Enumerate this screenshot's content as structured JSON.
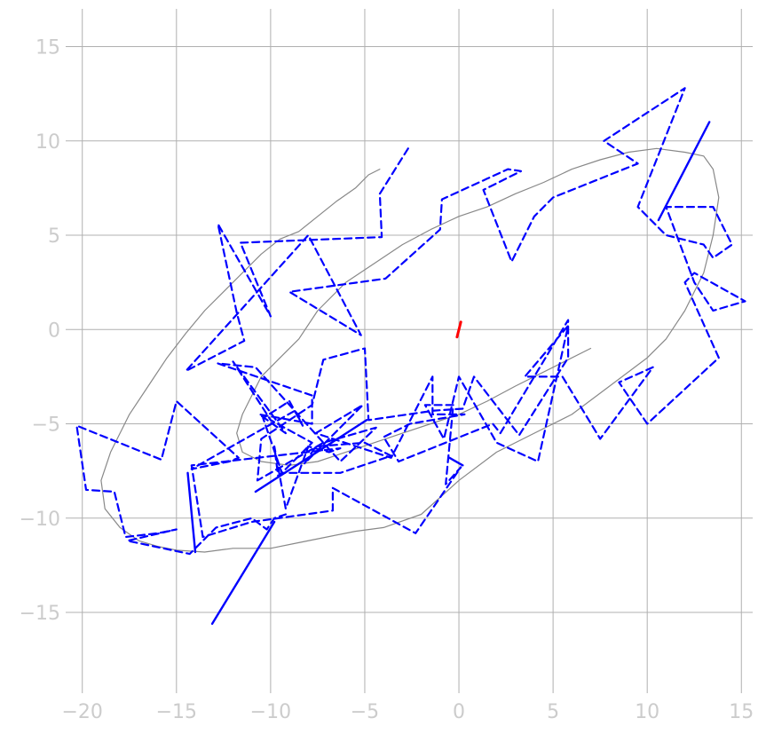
{
  "chart_data": {
    "type": "line",
    "title": "",
    "xlabel": "",
    "ylabel": "",
    "xlim": [
      -20.6,
      15.6
    ],
    "ylim": [
      -19.0,
      17.0
    ],
    "x_ticks": [
      -20,
      -15,
      -10,
      -5,
      0,
      5,
      10,
      15
    ],
    "x_tick_labels": [
      "−20",
      "−15",
      "−10",
      "−5",
      "0",
      "5",
      "10",
      "15"
    ],
    "y_ticks": [
      -15,
      -10,
      -5,
      0,
      5,
      10,
      15
    ],
    "y_tick_labels": [
      "−15",
      "−10",
      "−5",
      "0",
      "5",
      "10",
      "15"
    ],
    "grid": true,
    "series": [
      {
        "style": "solid-thin",
        "color": "#888888",
        "points": [
          [
            -4.2,
            8.5
          ],
          [
            -4.8,
            8.2
          ],
          [
            -5.5,
            7.5
          ],
          [
            -6.5,
            6.8
          ],
          [
            -7.5,
            6.0
          ],
          [
            -8.5,
            5.2
          ],
          [
            -9.5,
            4.8
          ],
          [
            -10.5,
            4.0
          ],
          [
            -11.5,
            3.0
          ],
          [
            -12.5,
            2.0
          ],
          [
            -13.5,
            1.0
          ],
          [
            -14.5,
            -0.2
          ],
          [
            -15.5,
            -1.5
          ],
          [
            -16.5,
            -3.0
          ],
          [
            -17.5,
            -4.5
          ],
          [
            -18.5,
            -6.5
          ],
          [
            -19.0,
            -8.0
          ],
          [
            -18.8,
            -9.5
          ],
          [
            -18.0,
            -10.5
          ],
          [
            -17.0,
            -11.2
          ],
          [
            -16.0,
            -11.5
          ],
          [
            -15.0,
            -11.7
          ],
          [
            -13.5,
            -11.8
          ],
          [
            -12.0,
            -11.6
          ],
          [
            -10.0,
            -11.6
          ],
          [
            -8.5,
            -11.3
          ],
          [
            -7.0,
            -11.0
          ],
          [
            -5.5,
            -10.7
          ],
          [
            -4.0,
            -10.5
          ],
          [
            -2.0,
            -9.8
          ],
          [
            0.0,
            -8.0
          ],
          [
            2.0,
            -6.5
          ],
          [
            4.0,
            -5.5
          ],
          [
            6.0,
            -4.5
          ],
          [
            8.0,
            -3.0
          ],
          [
            10.0,
            -1.5
          ],
          [
            11.0,
            -0.5
          ],
          [
            12.0,
            1.0
          ],
          [
            13.0,
            3.0
          ],
          [
            13.5,
            5.0
          ],
          [
            13.8,
            7.0
          ],
          [
            13.5,
            8.5
          ],
          [
            13.0,
            9.2
          ],
          [
            12.0,
            9.4
          ],
          [
            10.5,
            9.6
          ],
          [
            9.0,
            9.4
          ],
          [
            7.5,
            9.0
          ],
          [
            6.0,
            8.5
          ],
          [
            4.5,
            7.8
          ],
          [
            3.0,
            7.2
          ],
          [
            1.5,
            6.5
          ],
          [
            0.0,
            6.0
          ],
          [
            -1.5,
            5.3
          ],
          [
            -3.0,
            4.5
          ],
          [
            -4.5,
            3.5
          ],
          [
            -6.0,
            2.5
          ],
          [
            -7.5,
            1.0
          ],
          [
            -8.5,
            -0.5
          ],
          [
            -9.5,
            -1.5
          ],
          [
            -10.5,
            -2.5
          ],
          [
            -11.0,
            -3.5
          ],
          [
            -11.5,
            -4.5
          ],
          [
            -11.8,
            -5.5
          ],
          [
            -11.5,
            -6.5
          ],
          [
            -10.5,
            -7.0
          ],
          [
            -9.0,
            -7.2
          ],
          [
            -7.5,
            -7.0
          ],
          [
            -6.0,
            -6.5
          ],
          [
            -4.5,
            -6.0
          ],
          [
            -3.0,
            -5.5
          ],
          [
            -1.5,
            -5.0
          ],
          [
            0.0,
            -4.5
          ],
          [
            1.5,
            -3.8
          ],
          [
            3.0,
            -3.0
          ],
          [
            5.0,
            -2.0
          ],
          [
            7.0,
            -1.0
          ]
        ]
      },
      {
        "style": "dashed",
        "color": "#0000ff",
        "points": [
          [
            -2.7,
            9.6
          ],
          [
            -4.2,
            7.2
          ],
          [
            -4.1,
            4.9
          ],
          [
            -11.6,
            4.6
          ],
          [
            -10.0,
            0.7
          ],
          [
            -12.8,
            5.6
          ],
          [
            -11.8,
            0.9
          ],
          [
            -11.4,
            -0.6
          ],
          [
            -14.5,
            -2.2
          ],
          [
            -8.0,
            5.0
          ],
          [
            -5.2,
            -0.3
          ],
          [
            -9.0,
            2.0
          ],
          [
            -3.9,
            2.7
          ],
          [
            -1.0,
            5.3
          ],
          [
            -0.9,
            6.9
          ],
          [
            1.5,
            8.0
          ],
          [
            2.6,
            8.5
          ],
          [
            3.3,
            8.4
          ],
          [
            1.3,
            7.4
          ],
          [
            2.8,
            3.6
          ],
          [
            4.0,
            6.0
          ],
          [
            5.0,
            7.0
          ],
          [
            9.5,
            8.8
          ],
          [
            7.7,
            10.0
          ],
          [
            12.0,
            12.8
          ],
          [
            9.5,
            6.5
          ],
          [
            11.0,
            5.0
          ],
          [
            13.0,
            4.5
          ],
          [
            13.5,
            3.8
          ],
          [
            14.5,
            4.5
          ],
          [
            13.5,
            6.5
          ],
          [
            11.0,
            6.5
          ],
          [
            12.5,
            2.5
          ],
          [
            13.5,
            1.0
          ],
          [
            15.2,
            1.5
          ],
          [
            12.5,
            3.0
          ],
          [
            12.0,
            2.5
          ],
          [
            13.8,
            -1.5
          ],
          [
            10.0,
            -5.0
          ],
          [
            8.5,
            -2.8
          ],
          [
            10.3,
            -2.0
          ],
          [
            7.5,
            -5.8
          ],
          [
            5.5,
            -2.5
          ],
          [
            3.5,
            -2.5
          ],
          [
            5.8,
            0.2
          ],
          [
            4.2,
            -7.0
          ],
          [
            2.0,
            -6.0
          ],
          [
            0.0,
            -2.5
          ],
          [
            -0.8,
            -5.8
          ],
          [
            -1.8,
            -4.0
          ],
          [
            -0.3,
            -4.0
          ],
          [
            -0.7,
            -8.2
          ],
          [
            0.1,
            -7.3
          ],
          [
            -2.3,
            -10.8
          ],
          [
            -6.7,
            -8.4
          ],
          [
            -6.7,
            -9.6
          ],
          [
            -11.0,
            -10.2
          ],
          [
            -13.6,
            -11.0
          ],
          [
            -14.2,
            -7.2
          ],
          [
            -6.3,
            -6.3
          ],
          [
            -6.9,
            -6.5
          ],
          [
            -8.0,
            -6.2
          ],
          [
            -9.2,
            -9.5
          ],
          [
            -9.8,
            -6.2
          ],
          [
            -9.6,
            -7.8
          ],
          [
            -7.8,
            -6.0
          ],
          [
            -10.0,
            -4.8
          ],
          [
            -12.0,
            -1.7
          ],
          [
            -9.2,
            -5.5
          ],
          [
            -10.6,
            -4.5
          ],
          [
            -7.8,
            -5.0
          ],
          [
            -7.8,
            -3.5
          ],
          [
            -12.8,
            -1.8
          ],
          [
            -10.8,
            -2.0
          ],
          [
            -6.3,
            -7.0
          ],
          [
            -4.4,
            -5.2
          ],
          [
            -7.2,
            -6.0
          ],
          [
            -10.7,
            -8.0
          ],
          [
            -10.5,
            -5.8
          ],
          [
            -7.8,
            -4.0
          ],
          [
            -7.2,
            -1.6
          ],
          [
            -5.0,
            -1.0
          ],
          [
            -4.8,
            -4.8
          ],
          [
            -1.3,
            -4.3
          ],
          [
            0.2,
            -4.2
          ],
          [
            0.8,
            -2.5
          ],
          [
            3.2,
            -5.6
          ],
          [
            5.8,
            -1.5
          ],
          [
            5.8,
            0.5
          ],
          [
            2.2,
            -5.5
          ],
          [
            1.8,
            -5.0
          ],
          [
            -3.2,
            -7.0
          ],
          [
            -4.0,
            -5.7
          ],
          [
            -2.6,
            -5.0
          ],
          [
            0.3,
            -4.5
          ],
          [
            -1.4,
            -4.5
          ],
          [
            -1.4,
            -2.5
          ],
          [
            -3.6,
            -6.8
          ],
          [
            -7.6,
            -5.5
          ],
          [
            -5.1,
            -4.0
          ],
          [
            -8.2,
            -7.1
          ],
          [
            -7.6,
            -6.2
          ],
          [
            -5.0,
            -6.0
          ],
          [
            -3.6,
            -6.7
          ],
          [
            -6.3,
            -7.6
          ],
          [
            -9.4,
            -7.6
          ],
          [
            -10.4,
            -4.7
          ],
          [
            -9.0,
            -3.8
          ],
          [
            -8.3,
            -5.1
          ],
          [
            -8.7,
            -4.3
          ],
          [
            -14.2,
            -7.4
          ],
          [
            -12.2,
            -7.0
          ],
          [
            -11.7,
            -6.8
          ],
          [
            -15.0,
            -3.8
          ],
          [
            -15.8,
            -6.9
          ],
          [
            -20.3,
            -5.1
          ],
          [
            -19.8,
            -8.5
          ],
          [
            -18.3,
            -8.6
          ],
          [
            -17.7,
            -11.0
          ],
          [
            -16.0,
            -10.8
          ],
          [
            -15.0,
            -10.6
          ],
          [
            -17.6,
            -11.2
          ],
          [
            -14.3,
            -11.9
          ],
          [
            -12.9,
            -10.5
          ],
          [
            -11.0,
            -10.0
          ],
          [
            -10.2,
            -10.6
          ],
          [
            -9.8,
            -10.0
          ],
          [
            -9.2,
            -9.8
          ]
        ]
      },
      {
        "style": "solid",
        "color": "#0000ff",
        "points": [
          [
            -13.1,
            -15.6
          ],
          [
            -9.8,
            -10.2
          ]
        ]
      },
      {
        "style": "solid",
        "color": "#0000ff",
        "points": [
          [
            -14.4,
            -7.6
          ],
          [
            -14.0,
            -11.8
          ]
        ]
      },
      {
        "style": "solid",
        "color": "#0000ff",
        "points": [
          [
            -10.8,
            -8.6
          ],
          [
            -4.9,
            -4.8
          ]
        ]
      },
      {
        "style": "solid",
        "color": "#0000ff",
        "points": [
          [
            10.6,
            5.8
          ],
          [
            13.3,
            11.0
          ]
        ]
      },
      {
        "style": "solid",
        "color": "#0000ff",
        "points": [
          [
            -0.5,
            -6.8
          ],
          [
            0.2,
            -7.2
          ]
        ]
      },
      {
        "style": "solid-thick",
        "color": "#ff0000",
        "points": [
          [
            -0.1,
            -0.4
          ],
          [
            0.1,
            0.4
          ]
        ]
      }
    ]
  }
}
